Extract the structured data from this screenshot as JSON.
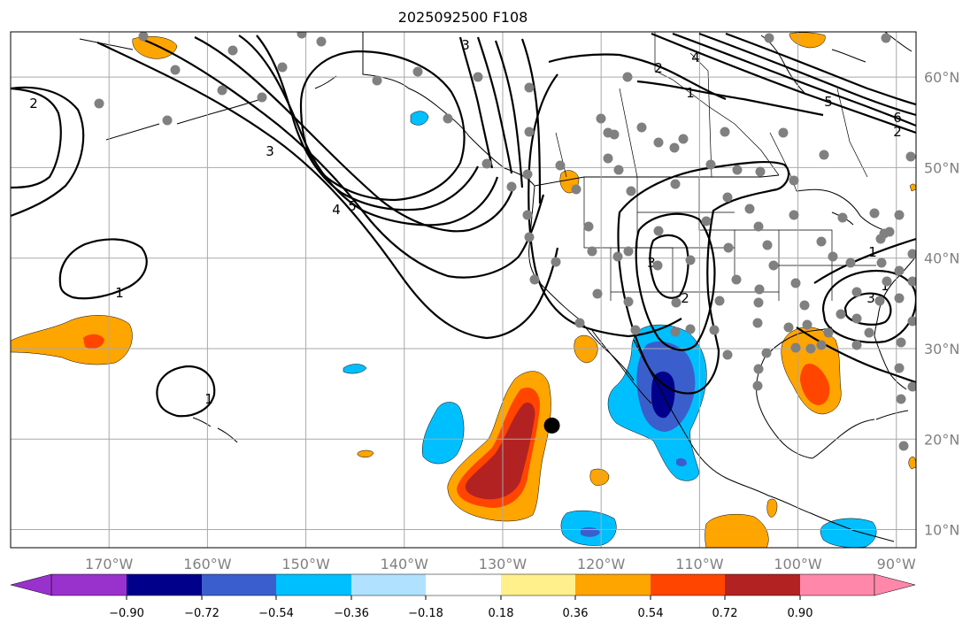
{
  "title": "2025092500 F108",
  "map": {
    "lon_range": [
      -180,
      -88
    ],
    "lat_range": [
      8,
      65
    ],
    "lon_ticks": [
      -170,
      -160,
      -150,
      -140,
      -130,
      -120,
      -110,
      -100,
      -90
    ],
    "lat_ticks": [
      10,
      20,
      30,
      40,
      50,
      60
    ],
    "lon_labels": [
      "170°W",
      "160°W",
      "150°W",
      "140°W",
      "130°W",
      "120°W",
      "110°W",
      "100°W",
      "90°W"
    ],
    "lat_labels": [
      "10°N",
      "20°N",
      "30°N",
      "40°N",
      "50°N",
      "60°N"
    ],
    "grid": true,
    "marker": {
      "lon": -125,
      "lat": 21.5
    },
    "contour_labels": [
      "2",
      "1",
      "3",
      "4",
      "5",
      "2",
      "1",
      "4",
      "6",
      "5",
      "3",
      "2",
      "3",
      "1",
      "1",
      "3",
      "2",
      "1"
    ]
  },
  "colorbar": {
    "colors": [
      "#9932cc",
      "#00008b",
      "#3a5fcd",
      "#00bfff",
      "#b0e2ff",
      "#ffffff",
      "#fff08c",
      "#ffa500",
      "#ff4500",
      "#b22222",
      "#ff88aa"
    ],
    "tick_labels": [
      "−0.90",
      "−0.72",
      "−0.54",
      "−0.36",
      "−0.18",
      "0.18",
      "0.36",
      "0.54",
      "0.72",
      "0.90"
    ]
  }
}
